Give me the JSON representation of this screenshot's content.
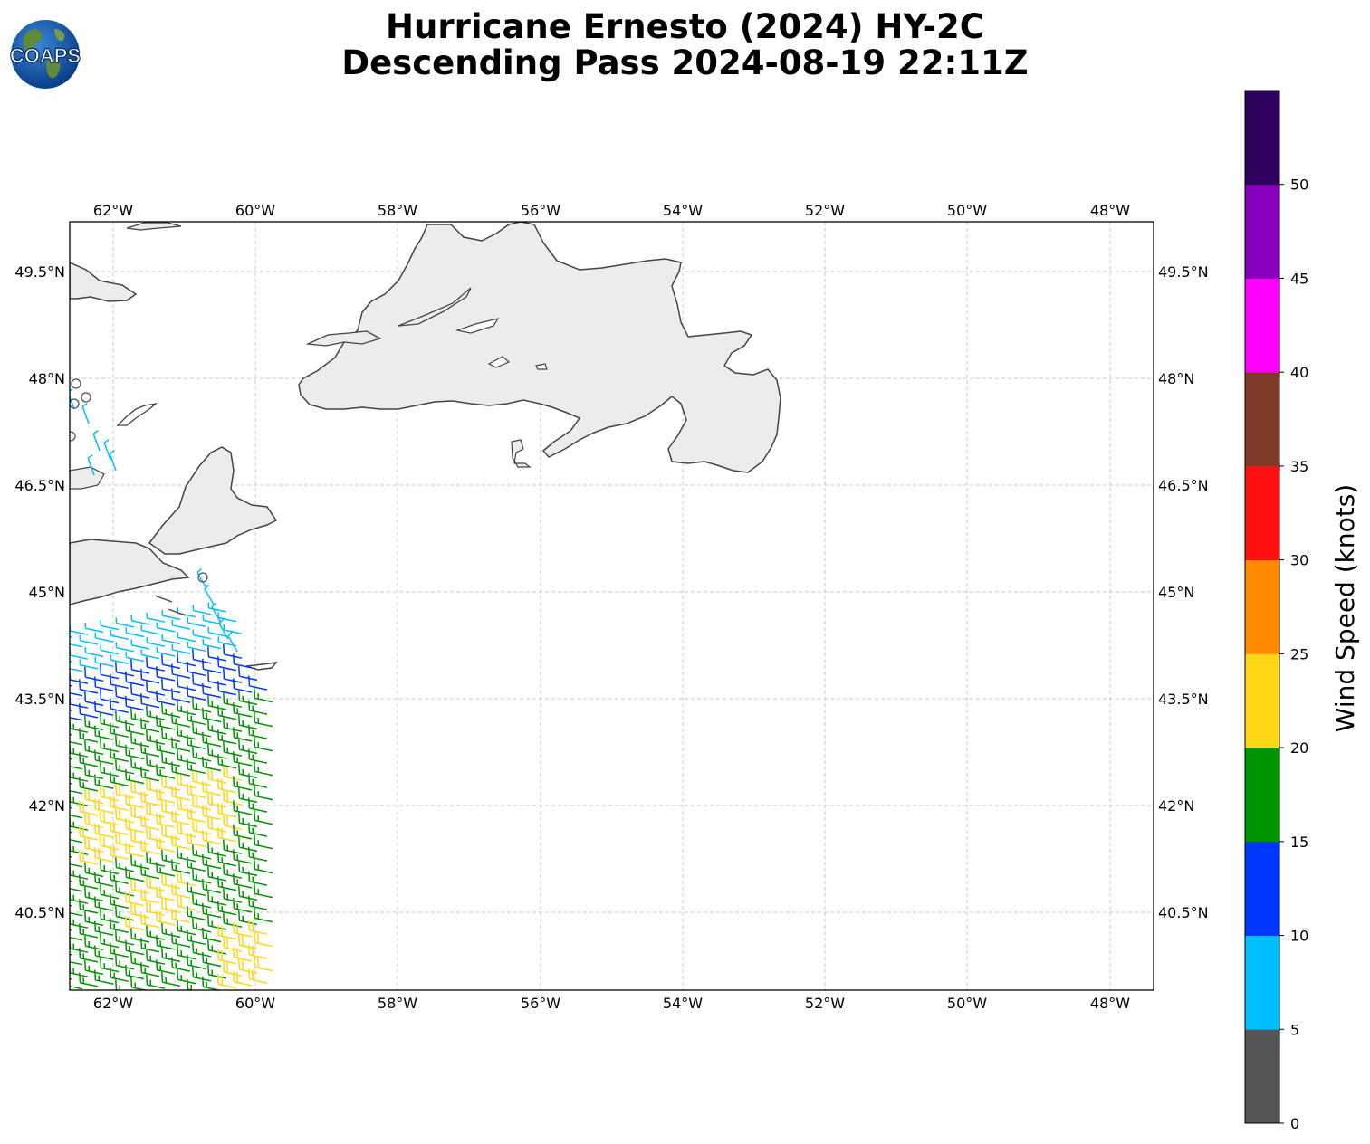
{
  "header": {
    "title_line1": "Hurricane Ernesto (2024) HY-2C",
    "title_line2": "Descending Pass 2024-08-19 22:11Z",
    "logo_text": "COAPS"
  },
  "map": {
    "lon_labels": [
      "62°W",
      "60°W",
      "58°W",
      "56°W",
      "54°W",
      "52°W",
      "50°W",
      "48°W"
    ],
    "lat_labels": [
      "49.5°N",
      "48°N",
      "46.5°N",
      "45°N",
      "43.5°N",
      "42°N",
      "40.5°N"
    ],
    "land_color": "#ececec",
    "coast_color": "#444444",
    "grid_color": "#bbbbbb"
  },
  "colorbar": {
    "title": "Wind Speed (knots)",
    "tick_labels": [
      "0",
      "5",
      "10",
      "15",
      "20",
      "25",
      "30",
      "35",
      "40",
      "45",
      "50"
    ],
    "bins": [
      {
        "min": 0,
        "max": 5,
        "color": "#555555"
      },
      {
        "min": 5,
        "max": 10,
        "color": "#00bfff"
      },
      {
        "min": 10,
        "max": 15,
        "color": "#0037ff"
      },
      {
        "min": 15,
        "max": 20,
        "color": "#009400"
      },
      {
        "min": 20,
        "max": 25,
        "color": "#ffd717"
      },
      {
        "min": 25,
        "max": 30,
        "color": "#ff8c00"
      },
      {
        "min": 30,
        "max": 35,
        "color": "#ff1010"
      },
      {
        "min": 35,
        "max": 40,
        "color": "#7f3a28"
      },
      {
        "min": 40,
        "max": 45,
        "color": "#ff00ff"
      },
      {
        "min": 45,
        "max": 50,
        "color": "#8800bb"
      },
      {
        "min": 50,
        "max": 55,
        "color": "#2d005e"
      }
    ]
  }
}
